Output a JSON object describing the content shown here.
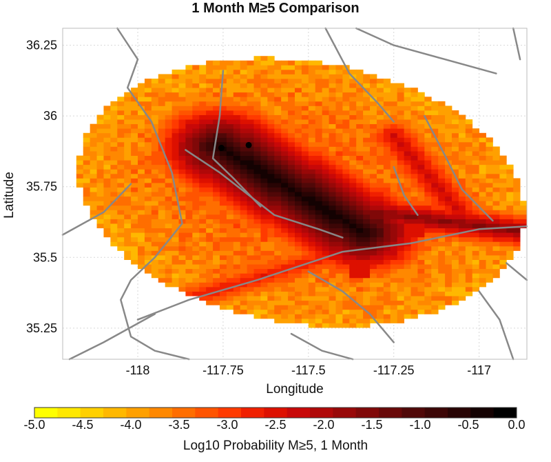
{
  "chart_data": {
    "type": "heatmap",
    "title": "1 Month M≥5 Comparison",
    "xlabel": "Longitude",
    "ylabel": "Latitude",
    "xlim": [
      -118.22,
      -116.86
    ],
    "ylim": [
      35.14,
      36.31
    ],
    "x_ticks": [
      {
        "value": -118,
        "label": "-118"
      },
      {
        "value": -117.75,
        "label": "-117.75"
      },
      {
        "value": -117.5,
        "label": "-117.5"
      },
      {
        "value": -117.25,
        "label": "-117.25"
      },
      {
        "value": -117,
        "label": "-117"
      }
    ],
    "y_ticks": [
      {
        "value": 36.25,
        "label": "36.25"
      },
      {
        "value": 36,
        "label": "36"
      },
      {
        "value": 35.75,
        "label": "35.75"
      },
      {
        "value": 35.5,
        "label": "35.5"
      },
      {
        "value": 35.25,
        "label": "35.25"
      }
    ],
    "grid": true,
    "colorbar": {
      "label": "Log10 Probability M≥5, 1 Month",
      "min": -5.0,
      "max": 0.0,
      "ticks": [
        {
          "value": -5.0,
          "label": "-5.0"
        },
        {
          "value": -4.5,
          "label": "-4.5"
        },
        {
          "value": -4.0,
          "label": "-4.0"
        },
        {
          "value": -3.5,
          "label": "-3.5"
        },
        {
          "value": -3.0,
          "label": "-3.0"
        },
        {
          "value": -2.5,
          "label": "-2.5"
        },
        {
          "value": -2.0,
          "label": "-2.0"
        },
        {
          "value": -1.5,
          "label": "-1.5"
        },
        {
          "value": -1.0,
          "label": "-1.0"
        },
        {
          "value": -0.5,
          "label": "-0.5"
        },
        {
          "value": 0.0,
          "label": "0.0"
        }
      ],
      "colors": [
        "#ffff00",
        "#ffe800",
        "#ffd000",
        "#ffb800",
        "#ffa000",
        "#ff8800",
        "#ff6e00",
        "#ff5400",
        "#ff3a00",
        "#f02000",
        "#dd1000",
        "#c80808",
        "#b00808",
        "#980808",
        "#800808",
        "#680808",
        "#500808",
        "#3c0606",
        "#280404",
        "#140202",
        "#000000"
      ]
    },
    "field_model": {
      "ellipse": {
        "center": [
          -117.52,
          35.73
        ],
        "semi_major_deg": 0.68,
        "semi_minor_deg": 0.45,
        "rotation_deg": -28
      },
      "background_value": -3.9,
      "segments": [
        {
          "from": [
            -117.76,
            35.89
          ],
          "to": [
            -117.34,
            35.59
          ],
          "peak": -0.3,
          "width_deg": 0.055
        },
        {
          "from": [
            -117.62,
            35.71
          ],
          "to": [
            -116.86,
            35.59
          ],
          "peak": -1.6,
          "width_deg": 0.035
        },
        {
          "from": [
            -118.0,
            35.3
          ],
          "to": [
            -117.4,
            35.52
          ],
          "peak": -2.6,
          "width_deg": 0.05
        },
        {
          "from": [
            -117.25,
            35.93
          ],
          "to": [
            -117.05,
            35.65
          ],
          "peak": -2.3,
          "width_deg": 0.05
        }
      ],
      "bright_cells": [
        {
          "lon": -117.78,
          "lat": 35.94,
          "value": -2.9
        },
        {
          "lon": -117.2,
          "lat": 35.6,
          "value": -2.6
        },
        {
          "lon": -117.35,
          "lat": 35.45,
          "value": -2.6
        }
      ]
    },
    "epicenters": [
      {
        "lon": -117.755,
        "lat": 35.887
      },
      {
        "lon": -117.675,
        "lat": 35.897
      }
    ],
    "faults": [
      [
        [
          -118.06,
          36.31
        ],
        [
          -118.0,
          36.2
        ],
        [
          -118.03,
          36.1
        ],
        [
          -117.96,
          35.98
        ],
        [
          -117.9,
          35.8
        ],
        [
          -117.87,
          35.62
        ],
        [
          -117.95,
          35.5
        ],
        [
          -118.02,
          35.42
        ],
        [
          -118.05,
          35.35
        ],
        [
          -118.02,
          35.22
        ],
        [
          -117.95,
          35.17
        ],
        [
          -117.85,
          35.14
        ]
      ],
      [
        [
          -117.86,
          35.88
        ],
        [
          -117.76,
          35.8
        ],
        [
          -117.6,
          35.65
        ],
        [
          -117.47,
          35.6
        ],
        [
          -117.4,
          35.57
        ]
      ],
      [
        [
          -117.75,
          36.16
        ],
        [
          -117.76,
          36.0
        ],
        [
          -117.78,
          35.85
        ],
        [
          -117.72,
          35.78
        ],
        [
          -117.64,
          35.68
        ]
      ],
      [
        [
          -118.0,
          35.28
        ],
        [
          -117.85,
          35.35
        ],
        [
          -117.65,
          35.42
        ],
        [
          -117.4,
          35.52
        ],
        [
          -117.2,
          35.55
        ],
        [
          -117.0,
          35.6
        ],
        [
          -116.86,
          35.61
        ]
      ],
      [
        [
          -117.45,
          36.31
        ],
        [
          -117.38,
          36.15
        ],
        [
          -117.3,
          36.05
        ],
        [
          -117.25,
          35.98
        ]
      ],
      [
        [
          -117.16,
          36.0
        ],
        [
          -117.1,
          35.86
        ],
        [
          -117.05,
          35.74
        ],
        [
          -116.96,
          35.63
        ]
      ],
      [
        [
          -117.25,
          35.82
        ],
        [
          -117.22,
          35.72
        ],
        [
          -117.18,
          35.65
        ]
      ],
      [
        [
          -117.5,
          35.45
        ],
        [
          -117.4,
          35.38
        ],
        [
          -117.32,
          35.3
        ],
        [
          -117.25,
          35.2
        ]
      ],
      [
        [
          -117.55,
          35.23
        ],
        [
          -117.46,
          35.17
        ],
        [
          -117.37,
          35.14
        ]
      ],
      [
        [
          -117.36,
          36.31
        ],
        [
          -117.25,
          36.25
        ],
        [
          -117.1,
          36.2
        ],
        [
          -116.95,
          36.15
        ]
      ],
      [
        [
          -118.22,
          35.58
        ],
        [
          -118.1,
          35.66
        ],
        [
          -118.02,
          35.76
        ]
      ],
      [
        [
          -118.2,
          35.14
        ],
        [
          -118.1,
          35.2
        ],
        [
          -117.95,
          35.3
        ]
      ],
      [
        [
          -116.92,
          35.48
        ],
        [
          -116.86,
          35.42
        ]
      ],
      [
        [
          -117.0,
          35.38
        ],
        [
          -116.94,
          35.28
        ],
        [
          -116.9,
          35.14
        ]
      ],
      [
        [
          -116.9,
          36.31
        ],
        [
          -116.88,
          36.2
        ]
      ]
    ]
  }
}
